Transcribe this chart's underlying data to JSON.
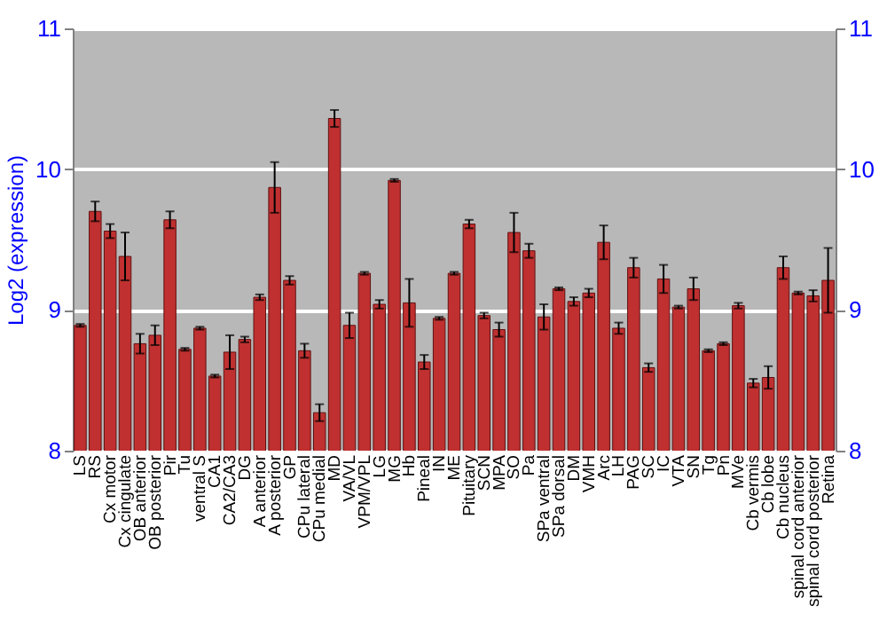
{
  "chart_data": {
    "type": "bar",
    "ylabel": "Log2 (expression)",
    "categories": [
      "LS",
      "RS",
      "Cx motor",
      "Cx cingulate",
      "OB anterior",
      "OB posterior",
      "Pir",
      "Tu",
      "ventral S",
      "CA1",
      "CA2/CA3",
      "DG",
      "A anterior",
      "A posterior",
      "GP",
      "CPu lateral",
      "CPu medial",
      "MD",
      "VA/VL",
      "VPM/VPL",
      "LG",
      "MG",
      "Hb",
      "Pineal",
      "IN",
      "ME",
      "Pituitary",
      "SCN",
      "MPA",
      "SO",
      "Pa",
      "SPa ventral",
      "SPa dorsal",
      "DM",
      "VMH",
      "Arc",
      "LH",
      "PAG",
      "SC",
      "IC",
      "VTA",
      "SN",
      "Tg",
      "Pn",
      "MVe",
      "Cb vermis",
      "Cb lobe",
      "Cb nucleus",
      "spinal cord anterior",
      "spinal cord posterior",
      "Retina"
    ],
    "values": [
      8.89,
      9.7,
      9.56,
      9.38,
      8.76,
      8.82,
      9.64,
      8.72,
      8.87,
      8.53,
      8.7,
      8.79,
      9.09,
      9.87,
      9.21,
      8.71,
      8.27,
      10.36,
      8.89,
      9.26,
      9.04,
      9.92,
      9.05,
      8.63,
      8.94,
      9.26,
      9.61,
      8.96,
      8.86,
      9.55,
      9.42,
      8.95,
      9.15,
      9.06,
      9.12,
      9.48,
      8.87,
      9.3,
      8.59,
      9.22,
      9.02,
      9.15,
      8.71,
      8.76,
      9.03,
      8.48,
      8.52,
      9.3,
      9.12,
      9.1,
      9.21
    ],
    "errors": [
      0.01,
      0.07,
      0.05,
      0.17,
      0.07,
      0.07,
      0.06,
      0.01,
      0.01,
      0.01,
      0.12,
      0.02,
      0.02,
      0.18,
      0.03,
      0.05,
      0.06,
      0.06,
      0.09,
      0.01,
      0.03,
      0.01,
      0.17,
      0.05,
      0.01,
      0.01,
      0.03,
      0.02,
      0.05,
      0.14,
      0.05,
      0.09,
      0.01,
      0.03,
      0.03,
      0.12,
      0.04,
      0.07,
      0.03,
      0.1,
      0.01,
      0.08,
      0.01,
      0.01,
      0.02,
      0.03,
      0.08,
      0.08,
      0.01,
      0.04,
      0.23
    ],
    "color": "#c03030",
    "ylim": [
      8,
      11
    ],
    "yticks": [
      8,
      9,
      10,
      11
    ],
    "y2lim": [
      8,
      11
    ],
    "y2ticks": [
      8,
      9,
      10,
      11
    ],
    "grid": "y"
  }
}
